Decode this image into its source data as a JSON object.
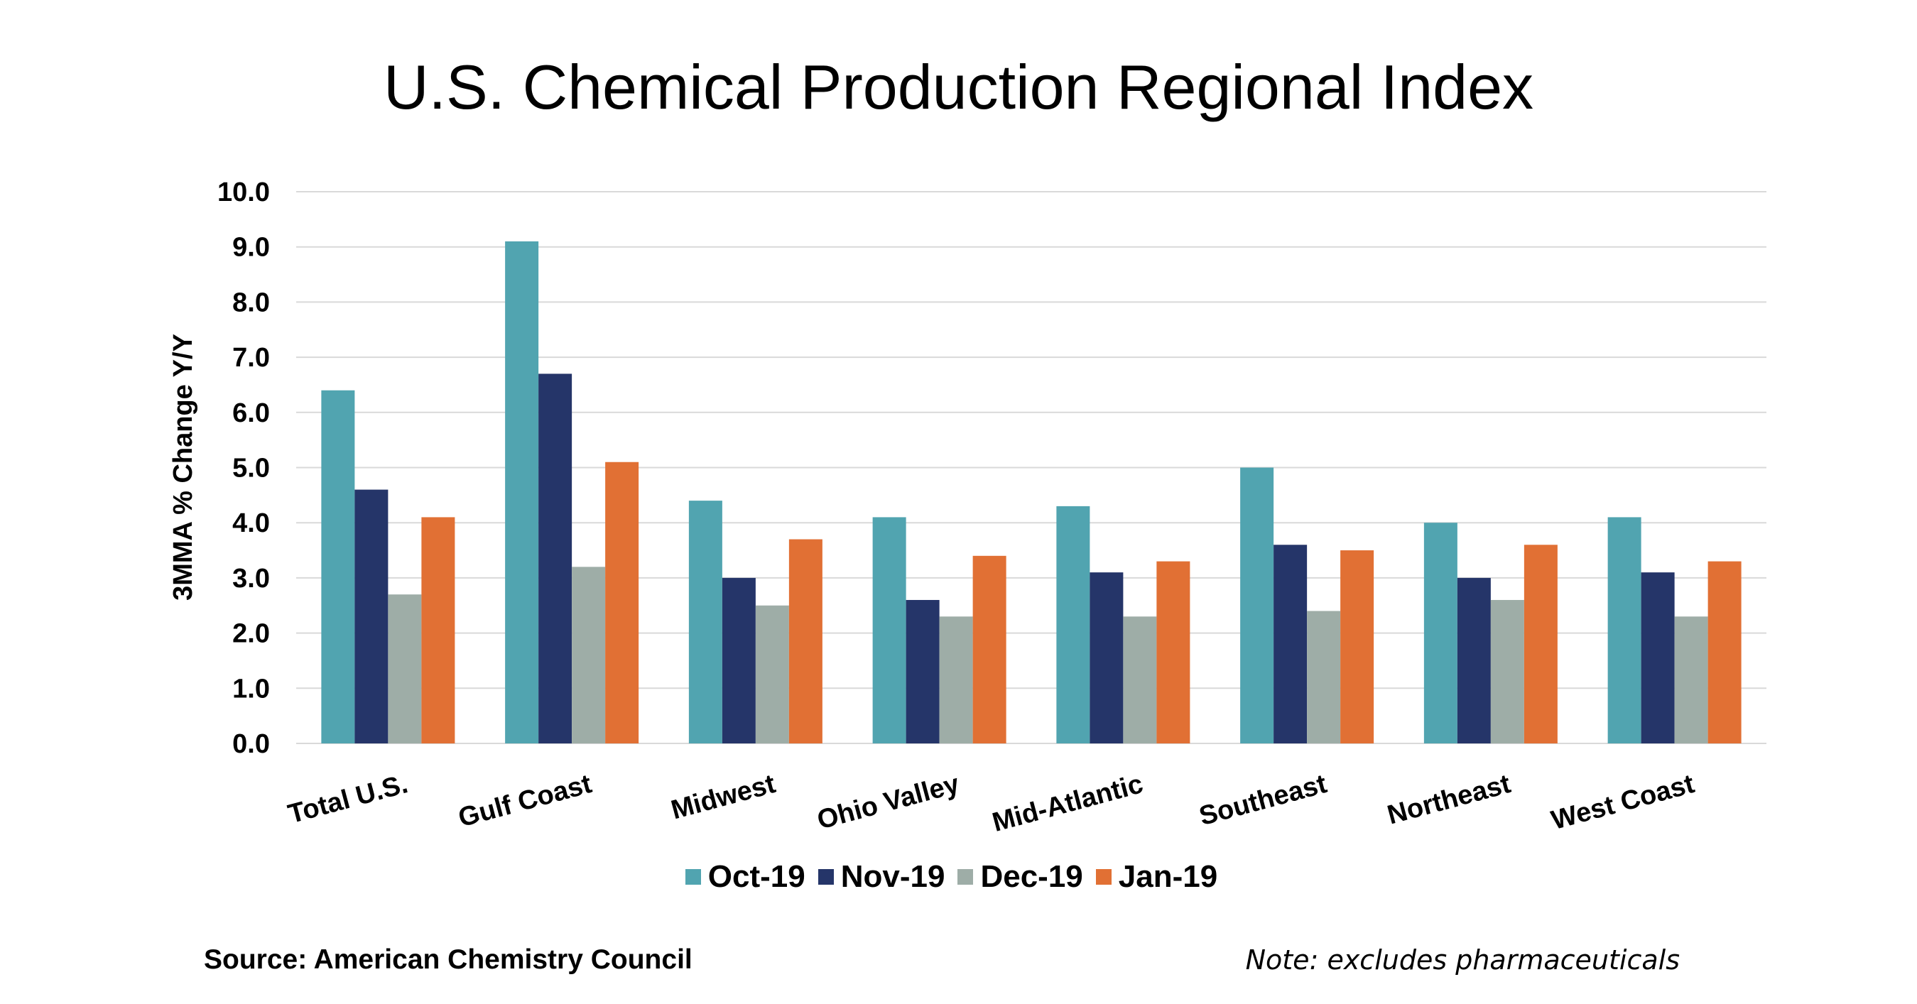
{
  "chart_data": {
    "type": "bar",
    "title": "U.S. Chemical Production Regional Index",
    "ylabel": "3MMA % Change Y/Y",
    "xlabel": "",
    "ylim": [
      0,
      10
    ],
    "yticks": [
      "0.0",
      "1.0",
      "2.0",
      "3.0",
      "4.0",
      "5.0",
      "6.0",
      "7.0",
      "8.0",
      "9.0",
      "10.0"
    ],
    "grid": true,
    "legend_position": "bottom",
    "categories": [
      "Total U.S.",
      "Gulf Coast",
      "Midwest",
      "Ohio Valley",
      "Mid-Atlantic",
      "Southeast",
      "Northeast",
      "West Coast"
    ],
    "series": [
      {
        "name": "Oct-19",
        "color": "#51A4B0",
        "values": [
          6.4,
          9.1,
          4.4,
          4.1,
          4.3,
          5.0,
          4.0,
          4.1
        ]
      },
      {
        "name": "Nov-19",
        "color": "#253569",
        "values": [
          4.6,
          6.7,
          3.0,
          2.6,
          3.1,
          3.6,
          3.0,
          3.1
        ]
      },
      {
        "name": "Dec-19",
        "color": "#9EADA7",
        "values": [
          2.7,
          3.2,
          2.5,
          2.3,
          2.3,
          2.4,
          2.6,
          2.3
        ]
      },
      {
        "name": "Jan-19",
        "color": "#E17034",
        "values": [
          4.1,
          5.1,
          3.7,
          3.4,
          3.3,
          3.5,
          3.6,
          3.3
        ]
      }
    ]
  },
  "footer": {
    "source": "Source: American Chemistry Council",
    "note": "Note: excludes pharmaceuticals"
  }
}
